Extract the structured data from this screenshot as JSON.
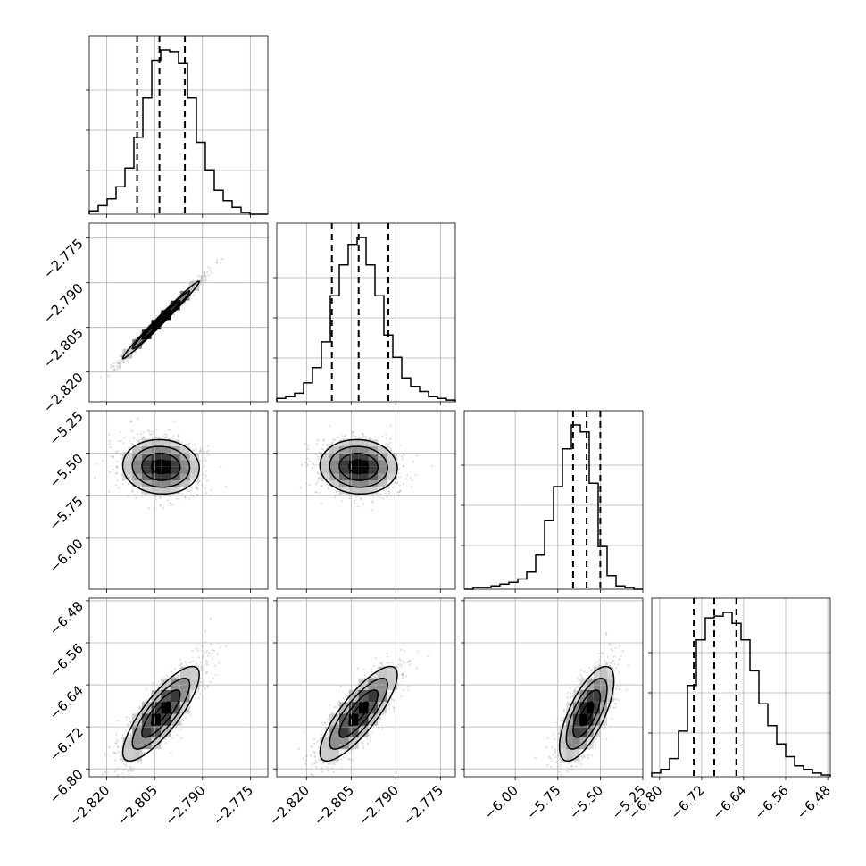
{
  "chart_data": {
    "type": "corner",
    "parameters": [
      {
        "range": [
          -2.8255,
          -2.7695
        ],
        "ticks": [
          -2.82,
          -2.805,
          -2.79,
          -2.775
        ],
        "tick_labels": [
          "−2.820",
          "−2.805",
          "−2.790",
          "−2.775"
        ],
        "quantiles": [
          -2.8105,
          -2.8035,
          -2.7955
        ],
        "mean": -2.803,
        "sd": 0.006,
        "hist_counts": [
          2,
          5,
          9,
          16,
          27,
          45,
          68,
          90,
          96,
          95,
          88,
          68,
          42,
          26,
          14,
          8,
          4,
          1,
          0,
          0
        ]
      },
      {
        "range": [
          -2.83,
          -2.77
        ],
        "ticks": [
          -2.82,
          -2.805,
          -2.79,
          -2.775
        ],
        "tick_labels": [
          "−2.820",
          "−2.805",
          "−2.790",
          "−2.775"
        ],
        "quantiles": [
          -2.8115,
          -2.8025,
          -2.7925
        ],
        "mean": -2.8025,
        "sd": 0.0065,
        "hist_counts": [
          2,
          3,
          5,
          11,
          20,
          35,
          62,
          80,
          92,
          96,
          80,
          62,
          39,
          26,
          14,
          9,
          6,
          3,
          2,
          1
        ]
      },
      {
        "range": [
          -6.3,
          -5.25
        ],
        "ticks": [
          -6.0,
          -5.75,
          -5.5,
          -5.25
        ],
        "tick_labels": [
          "−6.00",
          "−5.75",
          "−5.50",
          "−5.25"
        ],
        "left_tick_labels": [
          "−5.25",
          "−5.50",
          "−5.75",
          "−6.00"
        ],
        "quantiles": [
          -5.66,
          -5.58,
          -5.5
        ],
        "mean": -5.58,
        "sd": 0.08,
        "hist_counts": [
          0,
          1,
          1,
          2,
          3,
          4,
          6,
          10,
          20,
          40,
          60,
          82,
          96,
          92,
          62,
          25,
          8,
          2,
          1,
          0
        ]
      },
      {
        "range": [
          -6.815,
          -6.475
        ],
        "ticks": [
          -6.8,
          -6.72,
          -6.64,
          -6.56,
          -6.48
        ],
        "tick_labels": [
          "−6.80",
          "−6.72",
          "−6.64",
          "−6.56",
          "−6.48"
        ],
        "quantiles": [
          -6.735,
          -6.696,
          -6.654
        ],
        "mean": -6.695,
        "sd": 0.045,
        "hist_counts": [
          2,
          4,
          10,
          25,
          50,
          75,
          87,
          88,
          90,
          84,
          75,
          58,
          40,
          28,
          18,
          11,
          6,
          4,
          2,
          1
        ]
      }
    ],
    "correlations": {
      "1-0": 0.99,
      "2-0": -0.05,
      "2-1": -0.05,
      "3-0": 0.82,
      "3-1": 0.82,
      "3-2": 0.7
    },
    "contour_levels": [
      0.5,
      1.0,
      1.5,
      2.0
    ],
    "grid": true
  }
}
